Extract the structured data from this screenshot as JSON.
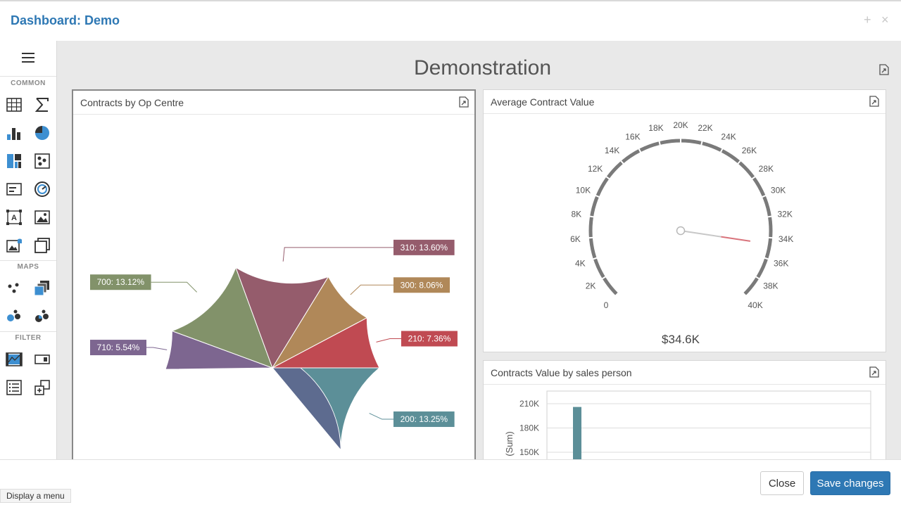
{
  "header": {
    "title": "Dashboard: Demo",
    "add_icon": "plus-icon",
    "close_icon": "close-icon"
  },
  "toolbox": {
    "groups": [
      {
        "label": "COMMON",
        "items": [
          "grid-icon",
          "sum-icon",
          "bar-chart-icon",
          "pie-chart-icon",
          "treemap-icon",
          "scatter-icon",
          "card-icon",
          "gauge-icon",
          "text-box-icon",
          "image-icon",
          "bound-image-icon",
          "group-icon"
        ]
      },
      {
        "label": "MAPS",
        "items": [
          "geo-point-map-icon",
          "choropleth-map-icon",
          "bubble-map-icon",
          "pie-map-icon"
        ]
      },
      {
        "label": "FILTER",
        "items": [
          "range-filter-icon",
          "combo-box-icon",
          "list-box-icon",
          "tree-view-icon"
        ]
      }
    ]
  },
  "dashboard": {
    "title": "Demonstration"
  },
  "panels": {
    "pie": {
      "title": "Contracts by Op Centre"
    },
    "gauge": {
      "title": "Average Contract Value"
    },
    "bar": {
      "title": "Contracts Value by sales person"
    }
  },
  "chart_data": [
    {
      "type": "pie",
      "title": "Contracts by Op Centre",
      "slices": [
        {
          "label": "200",
          "text": "200: 13.25%",
          "value": 13.25,
          "color": "#5c8f98"
        },
        {
          "label": "",
          "text": "",
          "value": 34.0,
          "color": "#5d6b8f"
        },
        {
          "label": "710",
          "text": "710: 5.54%",
          "value": 5.54,
          "color": "#7d6690"
        },
        {
          "label": "700",
          "text": "700: 13.12%",
          "value": 13.12,
          "color": "#82926a"
        },
        {
          "label": "310",
          "text": "310: 13.60%",
          "value": 13.6,
          "color": "#955c6c"
        },
        {
          "label": "300",
          "text": "300: 8.06%",
          "value": 8.06,
          "color": "#b08859"
        },
        {
          "label": "210",
          "text": "210: 7.36%",
          "value": 7.36,
          "color": "#c04a52"
        }
      ]
    },
    {
      "type": "gauge",
      "title": "Average Contract Value",
      "min": 0,
      "max": 40000,
      "value": 34600,
      "value_text": "$34.6K",
      "tick_labels": [
        "0",
        "2K",
        "4K",
        "6K",
        "8K",
        "10K",
        "12K",
        "14K",
        "16K",
        "18K",
        "20K",
        "22K",
        "24K",
        "26K",
        "28K",
        "30K",
        "32K",
        "34K",
        "36K",
        "38K",
        "40K"
      ],
      "needle_color": "#d9747c"
    },
    {
      "type": "bar",
      "title": "Contracts Value by sales person",
      "ylabel": "(Sum)",
      "y_ticks": [
        "210K",
        "180K",
        "150K"
      ],
      "ylim": [
        0,
        210000
      ],
      "values": [
        206000
      ],
      "color": "#5c8f98"
    }
  ],
  "footer": {
    "close_label": "Close",
    "save_label": "Save changes"
  },
  "tooltip": {
    "text": "Display a menu"
  }
}
